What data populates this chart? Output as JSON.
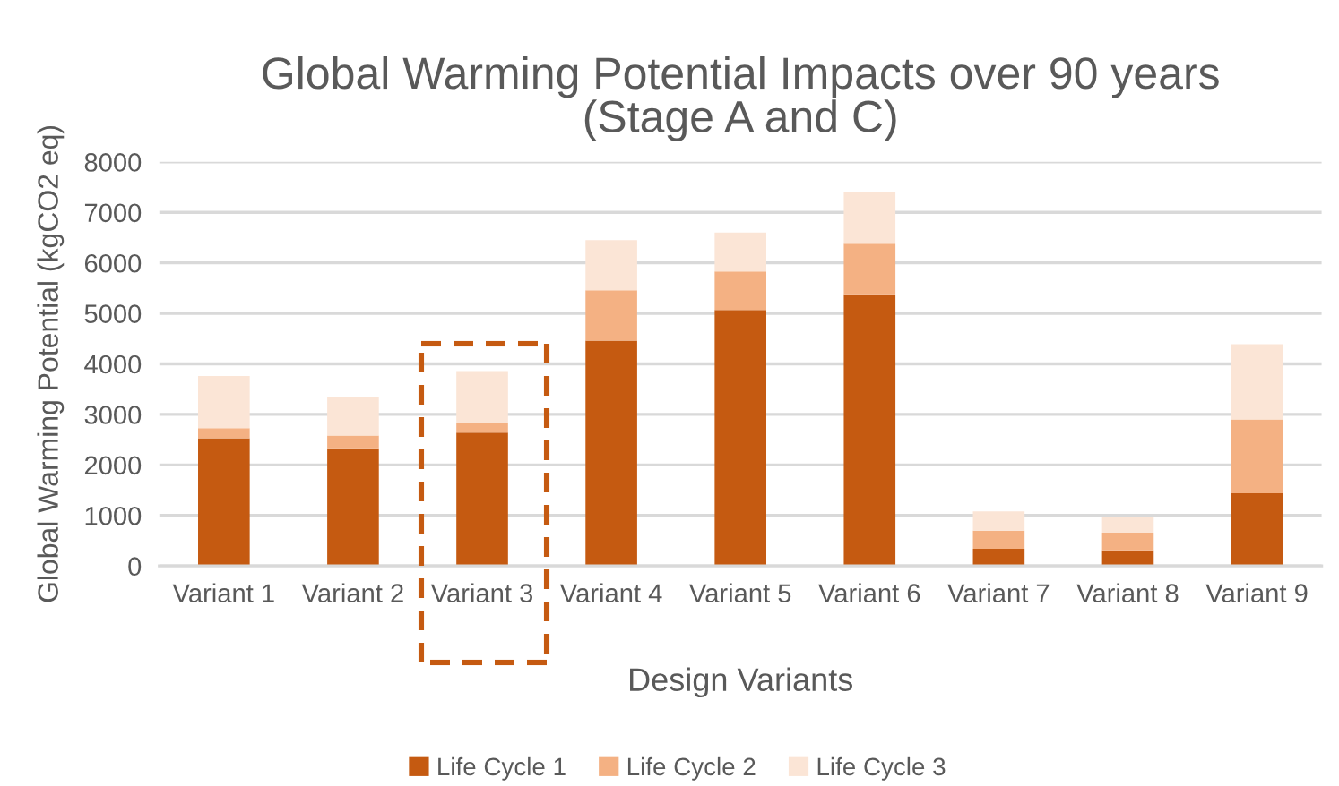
{
  "chart_data": {
    "type": "bar",
    "stacked": true,
    "title": "Global Warming Potential Impacts over 90 years\n(Stage A and C)",
    "xlabel": "Design Variants",
    "ylabel": "Global Warming Potential (kgCO2 eq)",
    "categories": [
      "Variant 1",
      "Variant 2",
      "Variant 3",
      "Variant 4",
      "Variant 5",
      "Variant 6",
      "Variant 7",
      "Variant 8",
      "Variant 9"
    ],
    "series": [
      {
        "name": "Life Cycle 1",
        "color": "#c55a11",
        "values": [
          2530,
          2330,
          2640,
          4460,
          5070,
          5380,
          340,
          310,
          1440
        ]
      },
      {
        "name": "Life Cycle 2",
        "color": "#f4b183",
        "values": [
          200,
          250,
          180,
          1000,
          760,
          1000,
          360,
          350,
          1460
        ]
      },
      {
        "name": "Life Cycle 3",
        "color": "#fbe5d6",
        "values": [
          1030,
          760,
          1040,
          990,
          770,
          1020,
          380,
          310,
          1490
        ]
      }
    ],
    "ylim": [
      0,
      8000
    ],
    "yticks": [
      0,
      1000,
      2000,
      3000,
      4000,
      5000,
      6000,
      7000,
      8000
    ],
    "grid": "y",
    "legend": "bottom"
  }
}
